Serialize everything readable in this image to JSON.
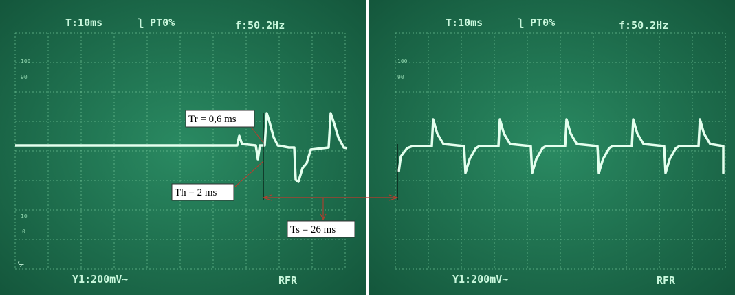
{
  "screens": [
    {
      "header": {
        "timebase": "T:10ms",
        "trigger": "ʅ PT0%",
        "frequency": "f:50.2Hz"
      },
      "scale": {
        "top": "100",
        "upper": "90",
        "lower": "10",
        "bottom": "0"
      },
      "footer": {
        "channel": "Y1:200mV~",
        "mode": "RFR"
      }
    },
    {
      "header": {
        "timebase": "T:10ms",
        "trigger": "ʅ PT0%",
        "frequency": "f:50.2Hz"
      },
      "scale": {
        "top": "100",
        "upper": "90"
      },
      "footer": {
        "channel": "Y1:200mV~",
        "mode": "RFR"
      }
    }
  ],
  "annotations": {
    "tr": "Tr = 0,6 ms",
    "th": "Th = 2 ms",
    "ts": "Ts = 26 ms"
  }
}
